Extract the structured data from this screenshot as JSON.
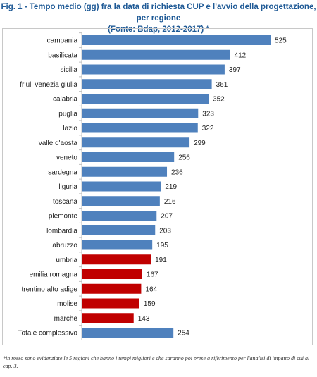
{
  "title": {
    "line1": "Fig. 1 - Tempo medio (gg) fra la data di richiesta CUP e l'avvio della progettazione, per regione",
    "line2": "(Fonte: Bdap, 2012-2017) *"
  },
  "footnote": "*in rosso sono evidenziate le 5 regioni che hanno i tempi migliori e che saranno poi prese a riferimento per l'analisi di impatto di cui al cap. 3.",
  "colors": {
    "blue": "#4f81bd",
    "red": "#c00000"
  },
  "chart_data": {
    "type": "bar",
    "orientation": "horizontal",
    "categories": [
      "campania",
      "basilicata",
      "sicilia",
      "friuli venezia giulia",
      "calabria",
      "puglia",
      "lazio",
      "valle d'aosta",
      "veneto",
      "sardegna",
      "liguria",
      "toscana",
      "piemonte",
      "lombardia",
      "abruzzo",
      "umbria",
      "emilia romagna",
      "trentino alto adige",
      "molise",
      "marche",
      "Totale complessivo"
    ],
    "values": [
      525,
      412,
      397,
      361,
      352,
      323,
      322,
      299,
      256,
      236,
      219,
      216,
      207,
      203,
      195,
      191,
      167,
      164,
      159,
      143,
      254
    ],
    "highlighted": [
      "umbria",
      "emilia romagna",
      "trentino alto adige",
      "molise",
      "marche"
    ],
    "xlim": [
      0,
      525
    ],
    "grid": false,
    "legend": "none",
    "data_labels": true
  }
}
